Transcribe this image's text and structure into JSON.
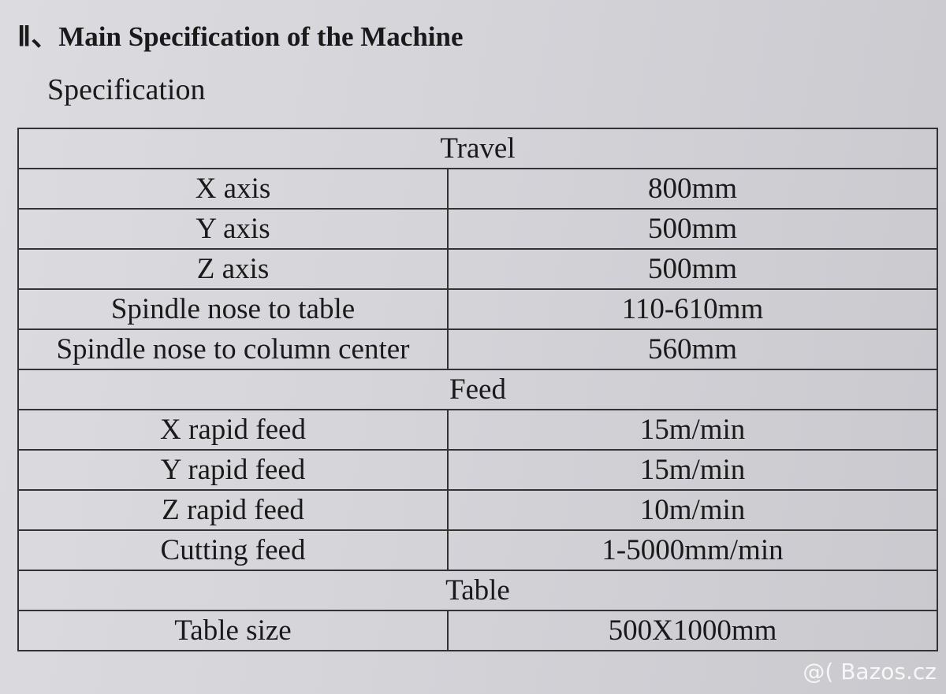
{
  "header": {
    "title": "Ⅱ、Main Specification of the Machine",
    "subtitle": "Specification"
  },
  "table": {
    "sections": [
      {
        "title": "Travel",
        "rows": [
          [
            "X axis",
            "800mm"
          ],
          [
            "Y axis",
            "500mm"
          ],
          [
            "Z axis",
            "500mm"
          ],
          [
            "Spindle nose to table",
            "110-610mm"
          ],
          [
            "Spindle nose to column center",
            "560mm"
          ]
        ]
      },
      {
        "title": "Feed",
        "rows": [
          [
            "X rapid feed",
            "15m/min"
          ],
          [
            "Y rapid feed",
            "15m/min"
          ],
          [
            "Z rapid feed",
            "10m/min"
          ],
          [
            "Cutting feed",
            "1-5000mm/min"
          ]
        ]
      },
      {
        "title": "Table",
        "rows": [
          [
            "Table size",
            "500X1000mm"
          ]
        ]
      }
    ]
  },
  "watermark": "@( Bazos.cz"
}
